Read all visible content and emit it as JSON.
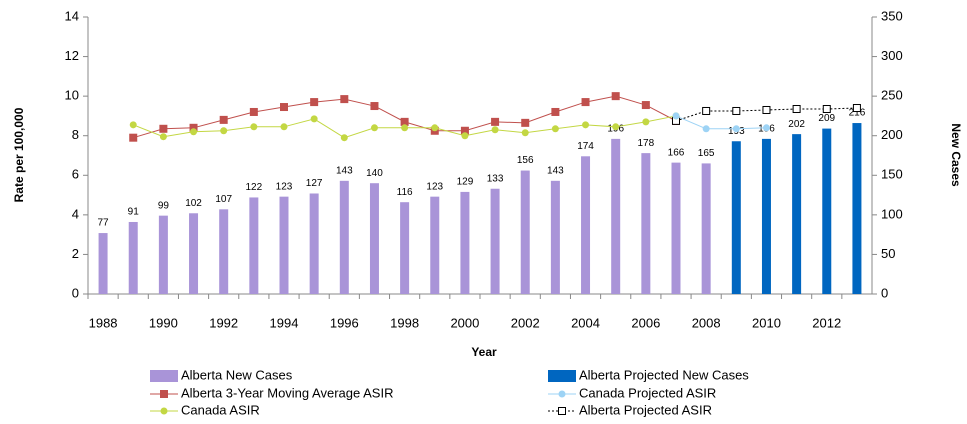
{
  "chart_data": {
    "type": "combo",
    "x_label": "Year",
    "y_label": "Rate per 100,000",
    "y2_label": "New Cases",
    "categories": [
      "1988",
      null,
      "1990",
      null,
      "1992",
      null,
      "1994",
      null,
      "1996",
      null,
      "1998",
      null,
      "2000",
      null,
      "2002",
      null,
      "2004",
      null,
      "2006",
      null,
      "2008",
      null,
      "2010",
      null,
      "2012",
      null
    ],
    "ylim": [
      0,
      14
    ],
    "yticks": [
      0,
      2,
      4,
      6,
      8,
      10,
      12,
      14
    ],
    "y2lim": [
      0,
      350
    ],
    "y2ticks": [
      0,
      50,
      100,
      150,
      200,
      250,
      300,
      350
    ],
    "series": [
      {
        "name": "Alberta New Cases",
        "type": "bar",
        "axis": "y2",
        "color": "#a994d8",
        "values": [
          77,
          91,
          99,
          102,
          107,
          122,
          123,
          127,
          143,
          140,
          116,
          123,
          129,
          133,
          156,
          143,
          174,
          196,
          178,
          166,
          165,
          null,
          null,
          null,
          null,
          null
        ]
      },
      {
        "name": "Alberta Projected New Cases",
        "type": "bar",
        "axis": "y2",
        "color": "#0066c0",
        "values": [
          null,
          null,
          null,
          null,
          null,
          null,
          null,
          null,
          null,
          null,
          null,
          null,
          null,
          null,
          null,
          null,
          null,
          null,
          null,
          null,
          null,
          193,
          196,
          202,
          209,
          216
        ]
      },
      {
        "name": "Alberta 3-Year Moving Average ASIR",
        "type": "line",
        "marker": "square",
        "color": "#c0504d",
        "values": [
          null,
          7.9,
          8.35,
          8.4,
          8.8,
          9.2,
          9.45,
          9.7,
          9.85,
          9.5,
          8.7,
          8.25,
          8.25,
          8.7,
          8.65,
          9.2,
          9.7,
          10.0,
          9.55,
          8.75,
          null,
          null,
          null,
          null,
          null,
          null
        ]
      },
      {
        "name": "Alberta Projected ASIR",
        "type": "line",
        "marker": "open-square",
        "dash": true,
        "color": "#000000",
        "values": [
          null,
          null,
          null,
          null,
          null,
          null,
          null,
          null,
          null,
          null,
          null,
          null,
          null,
          null,
          null,
          null,
          null,
          null,
          null,
          8.75,
          9.25,
          9.25,
          9.3,
          9.35,
          9.35,
          9.4
        ]
      },
      {
        "name": "Canada ASIR",
        "type": "line",
        "marker": "circle",
        "color": "#c3d743",
        "values": [
          null,
          8.55,
          7.95,
          8.2,
          8.25,
          8.45,
          8.45,
          8.85,
          7.9,
          8.4,
          8.4,
          8.4,
          8.0,
          8.3,
          8.15,
          8.35,
          8.55,
          8.45,
          8.7,
          9.0,
          null,
          null,
          null,
          null,
          null,
          null
        ]
      },
      {
        "name": "Canada Projected ASIR",
        "type": "line",
        "marker": "circle",
        "color": "#9dd3f5",
        "values": [
          null,
          null,
          null,
          null,
          null,
          null,
          null,
          null,
          null,
          null,
          null,
          null,
          null,
          null,
          null,
          null,
          null,
          null,
          null,
          9.0,
          8.35,
          8.35,
          8.4,
          null,
          null,
          null
        ]
      }
    ]
  }
}
